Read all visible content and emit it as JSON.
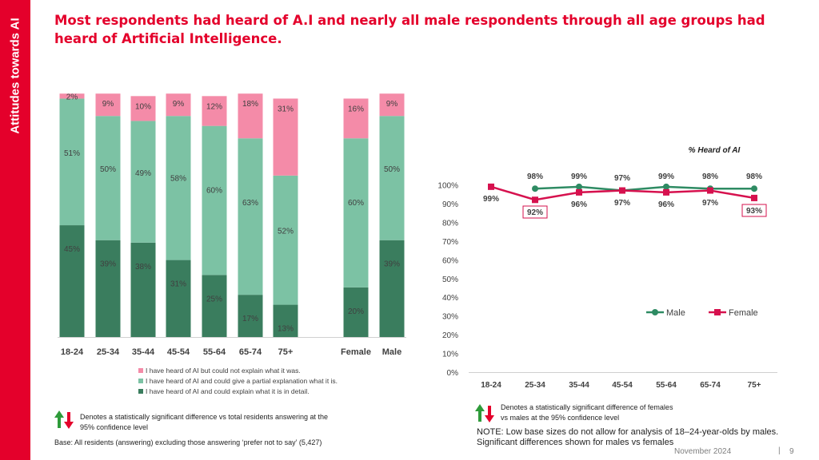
{
  "side_label": "Attitudes towards AI",
  "title": "Most respondents had heard of A.I and nearly all male respondents through all age groups had heard of Artificial Intelligence.",
  "colors": {
    "brand": "#e4002b",
    "dark_green": "#3a7d5e",
    "mid_green": "#7cc2a4",
    "pink": "#f48ba8",
    "male_line": "#2e8b63",
    "female_line": "#d6114e"
  },
  "chart_data": [
    {
      "type": "bar",
      "stacked": true,
      "categories": [
        "18-24",
        "25-34",
        "35-44",
        "45-54",
        "55-64",
        "65-74",
        "75+",
        "Female",
        "Male"
      ],
      "series": [
        {
          "name": "I have heard of AI and could explain what it is in detail.",
          "values": [
            45,
            39,
            38,
            31,
            25,
            17,
            13,
            20,
            39
          ],
          "labels": [
            "45%",
            "39%",
            "38%",
            "31%",
            "25%",
            "17%",
            "13%",
            "20%",
            "39%"
          ],
          "color": "#3a7d5e"
        },
        {
          "name": "I have heard of AI and could give a partial explanation what it is.",
          "values": [
            51,
            50,
            49,
            58,
            60,
            63,
            52,
            60,
            50
          ],
          "labels": [
            "51%",
            "50%",
            "49%",
            "58%",
            "60%",
            "63%",
            "52%",
            "60%",
            "50%"
          ],
          "color": "#7cc2a4"
        },
        {
          "name": "I have heard of AI but could not explain what it was.",
          "values": [
            2,
            9,
            10,
            9,
            12,
            18,
            31,
            16,
            9
          ],
          "labels": [
            "2%",
            "9%",
            "10%",
            "9%",
            "12%",
            "18%",
            "31%",
            "16%",
            "9%"
          ],
          "color": "#f48ba8"
        }
      ],
      "legend": [
        "I have heard of AI but could not explain what it was.",
        "I have heard of AI and could give a partial explanation what it is.",
        "I have heard of AI and could explain what it is in detail."
      ]
    },
    {
      "type": "line",
      "title": "% Heard of AI",
      "categories": [
        "18-24",
        "25-34",
        "35-44",
        "45-54",
        "55-64",
        "65-74",
        "75+"
      ],
      "yticks": [
        "0%",
        "10%",
        "20%",
        "30%",
        "40%",
        "50%",
        "60%",
        "70%",
        "80%",
        "90%",
        "100%"
      ],
      "ylim": [
        0,
        100
      ],
      "series": [
        {
          "name": "Male",
          "values": [
            null,
            98,
            99,
            97,
            99,
            98,
            98
          ],
          "labels": [
            "",
            "98%",
            "99%",
            "97%",
            "99%",
            "98%",
            "98%"
          ],
          "color": "#2e8b63"
        },
        {
          "name": "Female",
          "values": [
            99,
            92,
            96,
            97,
            96,
            97,
            93
          ],
          "labels": [
            "99%",
            "92%",
            "96%",
            "97%",
            "96%",
            "97%",
            "93%"
          ],
          "color": "#d6114e",
          "boxed": [
            false,
            true,
            false,
            false,
            false,
            false,
            true
          ]
        }
      ],
      "legend": [
        "Male",
        "Female"
      ]
    }
  ],
  "notes": {
    "sig_total": "Denotes a statistically significant difference vs total residents answering at the 95% confidence level",
    "sig_gender": "Denotes a statistically significant difference of females vs males at the 95% confidence level",
    "base": "Base: All residents (answering) excluding those answering ‘prefer not to say’ (5,427)",
    "low_base": "NOTE: Low base sizes do not allow for analysis of 18–24-year-olds by males. Significant differences shown for males vs females"
  },
  "footer": {
    "date": "November 2024",
    "separator": "|",
    "page": "9"
  }
}
